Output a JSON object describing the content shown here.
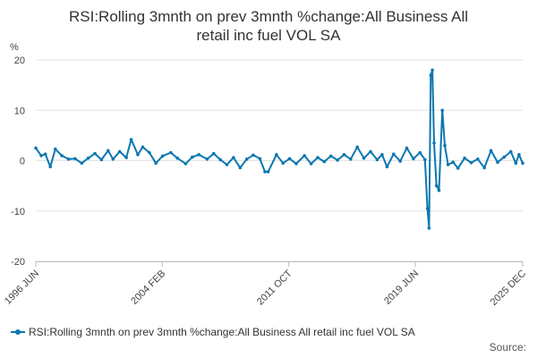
{
  "chart_data": {
    "type": "line",
    "title_lines": [
      "RSI:Rolling 3mnth on prev 3mnth %change:All Business All",
      "retail inc fuel VOL SA"
    ],
    "ylabel": "%",
    "ylim": [
      -20,
      20
    ],
    "yticks": [
      20,
      10,
      0,
      -10,
      -20
    ],
    "ytick_labels": [
      "20",
      "10",
      "0",
      "-10",
      "-20"
    ],
    "xlim": [
      1996.42,
      2025.92
    ],
    "xticks": [
      {
        "x": 1996.42,
        "label": "1996 JUN"
      },
      {
        "x": 2004.08,
        "label": "2004 FEB"
      },
      {
        "x": 2011.75,
        "label": "2011 OCT"
      },
      {
        "x": 2019.42,
        "label": "2019 JUN"
      },
      {
        "x": 2025.92,
        "label": "2025 DEC"
      }
    ],
    "series": [
      {
        "name": "RSI:Rolling 3mnth on prev 3mnth %change:All Business All retail inc fuel VOL SA",
        "color": "#0a77b0",
        "points": [
          [
            1996.42,
            2.5
          ],
          [
            1996.75,
            1.0
          ],
          [
            1997.0,
            1.3
          ],
          [
            1997.3,
            -1.2
          ],
          [
            1997.6,
            2.3
          ],
          [
            1998.0,
            1.0
          ],
          [
            1998.4,
            0.3
          ],
          [
            1998.8,
            0.4
          ],
          [
            1999.2,
            -0.5
          ],
          [
            1999.6,
            0.5
          ],
          [
            2000.0,
            1.4
          ],
          [
            2000.4,
            0.2
          ],
          [
            2000.8,
            2.0
          ],
          [
            2001.1,
            0.3
          ],
          [
            2001.5,
            1.8
          ],
          [
            2001.9,
            0.6
          ],
          [
            2002.2,
            4.2
          ],
          [
            2002.6,
            1.2
          ],
          [
            2002.9,
            2.7
          ],
          [
            2003.3,
            1.6
          ],
          [
            2003.7,
            -0.5
          ],
          [
            2004.1,
            0.9
          ],
          [
            2004.6,
            1.6
          ],
          [
            2005.0,
            0.5
          ],
          [
            2005.5,
            -0.6
          ],
          [
            2005.9,
            0.7
          ],
          [
            2006.3,
            1.2
          ],
          [
            2006.8,
            0.3
          ],
          [
            2007.2,
            1.4
          ],
          [
            2007.6,
            0.2
          ],
          [
            2008.0,
            -0.8
          ],
          [
            2008.4,
            0.6
          ],
          [
            2008.8,
            -1.4
          ],
          [
            2009.2,
            0.3
          ],
          [
            2009.6,
            1.1
          ],
          [
            2010.0,
            0.4
          ],
          [
            2010.3,
            -2.2
          ],
          [
            2010.5,
            -2.2
          ],
          [
            2011.0,
            1.2
          ],
          [
            2011.4,
            -0.5
          ],
          [
            2011.8,
            0.4
          ],
          [
            2012.2,
            -0.6
          ],
          [
            2012.7,
            1.0
          ],
          [
            2013.1,
            -0.6
          ],
          [
            2013.5,
            0.6
          ],
          [
            2013.9,
            -0.2
          ],
          [
            2014.3,
            0.9
          ],
          [
            2014.7,
            0.1
          ],
          [
            2015.1,
            1.2
          ],
          [
            2015.5,
            0.3
          ],
          [
            2015.9,
            2.7
          ],
          [
            2016.3,
            0.5
          ],
          [
            2016.7,
            1.8
          ],
          [
            2017.1,
            0.2
          ],
          [
            2017.4,
            1.2
          ],
          [
            2017.7,
            -1.2
          ],
          [
            2018.1,
            1.3
          ],
          [
            2018.5,
            -0.1
          ],
          [
            2018.9,
            2.5
          ],
          [
            2019.3,
            0.4
          ],
          [
            2019.7,
            1.6
          ],
          [
            2020.0,
            0.2
          ],
          [
            2020.15,
            -9.5
          ],
          [
            2020.25,
            -13.4
          ],
          [
            2020.35,
            17.0
          ],
          [
            2020.45,
            18.0
          ],
          [
            2020.55,
            3.5
          ],
          [
            2020.7,
            -5.0
          ],
          [
            2020.85,
            -5.9
          ],
          [
            2021.05,
            10.0
          ],
          [
            2021.2,
            3.0
          ],
          [
            2021.4,
            -0.8
          ],
          [
            2021.7,
            -0.3
          ],
          [
            2022.0,
            -1.5
          ],
          [
            2022.4,
            0.5
          ],
          [
            2022.8,
            -0.4
          ],
          [
            2023.2,
            0.3
          ],
          [
            2023.6,
            -1.4
          ],
          [
            2024.0,
            2.0
          ],
          [
            2024.4,
            -0.3
          ],
          [
            2024.8,
            0.7
          ],
          [
            2025.2,
            1.8
          ],
          [
            2025.5,
            -0.5
          ],
          [
            2025.7,
            1.2
          ],
          [
            2025.92,
            -0.5
          ]
        ]
      }
    ]
  },
  "legend": {
    "label": "RSI:Rolling 3mnth on prev 3mnth %change:All Business All retail inc fuel VOL SA"
  },
  "source": {
    "label": "Source:"
  }
}
